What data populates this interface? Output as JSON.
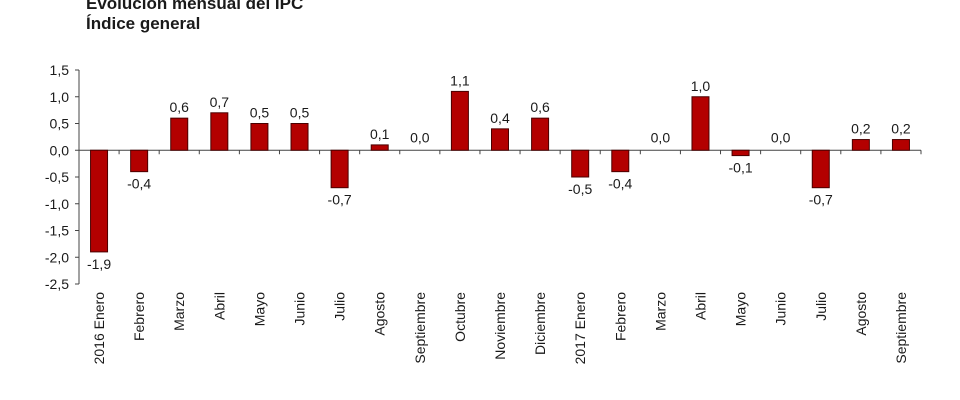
{
  "chart_data": {
    "type": "bar",
    "title": "Evolución mensual del IPC",
    "subtitle": "Índice general",
    "xlabel": "",
    "ylabel": "",
    "ylim": [
      -2.5,
      1.5
    ],
    "yticks": [
      "1,5",
      "1,0",
      "0,5",
      "0,0",
      "-0,5",
      "-1,0",
      "-1,5",
      "-2,0",
      "-2,5"
    ],
    "ytick_values": [
      1.5,
      1.0,
      0.5,
      0.0,
      -0.5,
      -1.0,
      -1.5,
      -2.0,
      -2.5
    ],
    "categories": [
      "2016 Enero",
      "Febrero",
      "Marzo",
      "Abril",
      "Mayo",
      "Junio",
      "Julio",
      "Agosto",
      "Septiembre",
      "Octubre",
      "Noviembre",
      "Diciembre",
      "2017 Enero",
      "Febrero",
      "Marzo",
      "Abril",
      "Mayo",
      "Junio",
      "Julio",
      "Agosto",
      "Septiembre"
    ],
    "values": [
      -1.9,
      -0.4,
      0.6,
      0.7,
      0.5,
      0.5,
      -0.7,
      0.1,
      0.0,
      1.1,
      0.4,
      0.6,
      -0.5,
      -0.4,
      0.0,
      1.0,
      -0.1,
      0.0,
      -0.7,
      0.2,
      0.2
    ],
    "value_labels": [
      "-1,9",
      "-0,4",
      "0,6",
      "0,7",
      "0,5",
      "0,5",
      "-0,7",
      "0,1",
      "0,0",
      "1,1",
      "0,4",
      "0,6",
      "-0,5",
      "-0,4",
      "0,0",
      "1,0",
      "-0,1",
      "0,0",
      "-0,7",
      "0,2",
      "0,2"
    ],
    "bar_color": "#b30000",
    "bar_edge_color": "#4a0000",
    "grid": false,
    "legend": "none"
  }
}
